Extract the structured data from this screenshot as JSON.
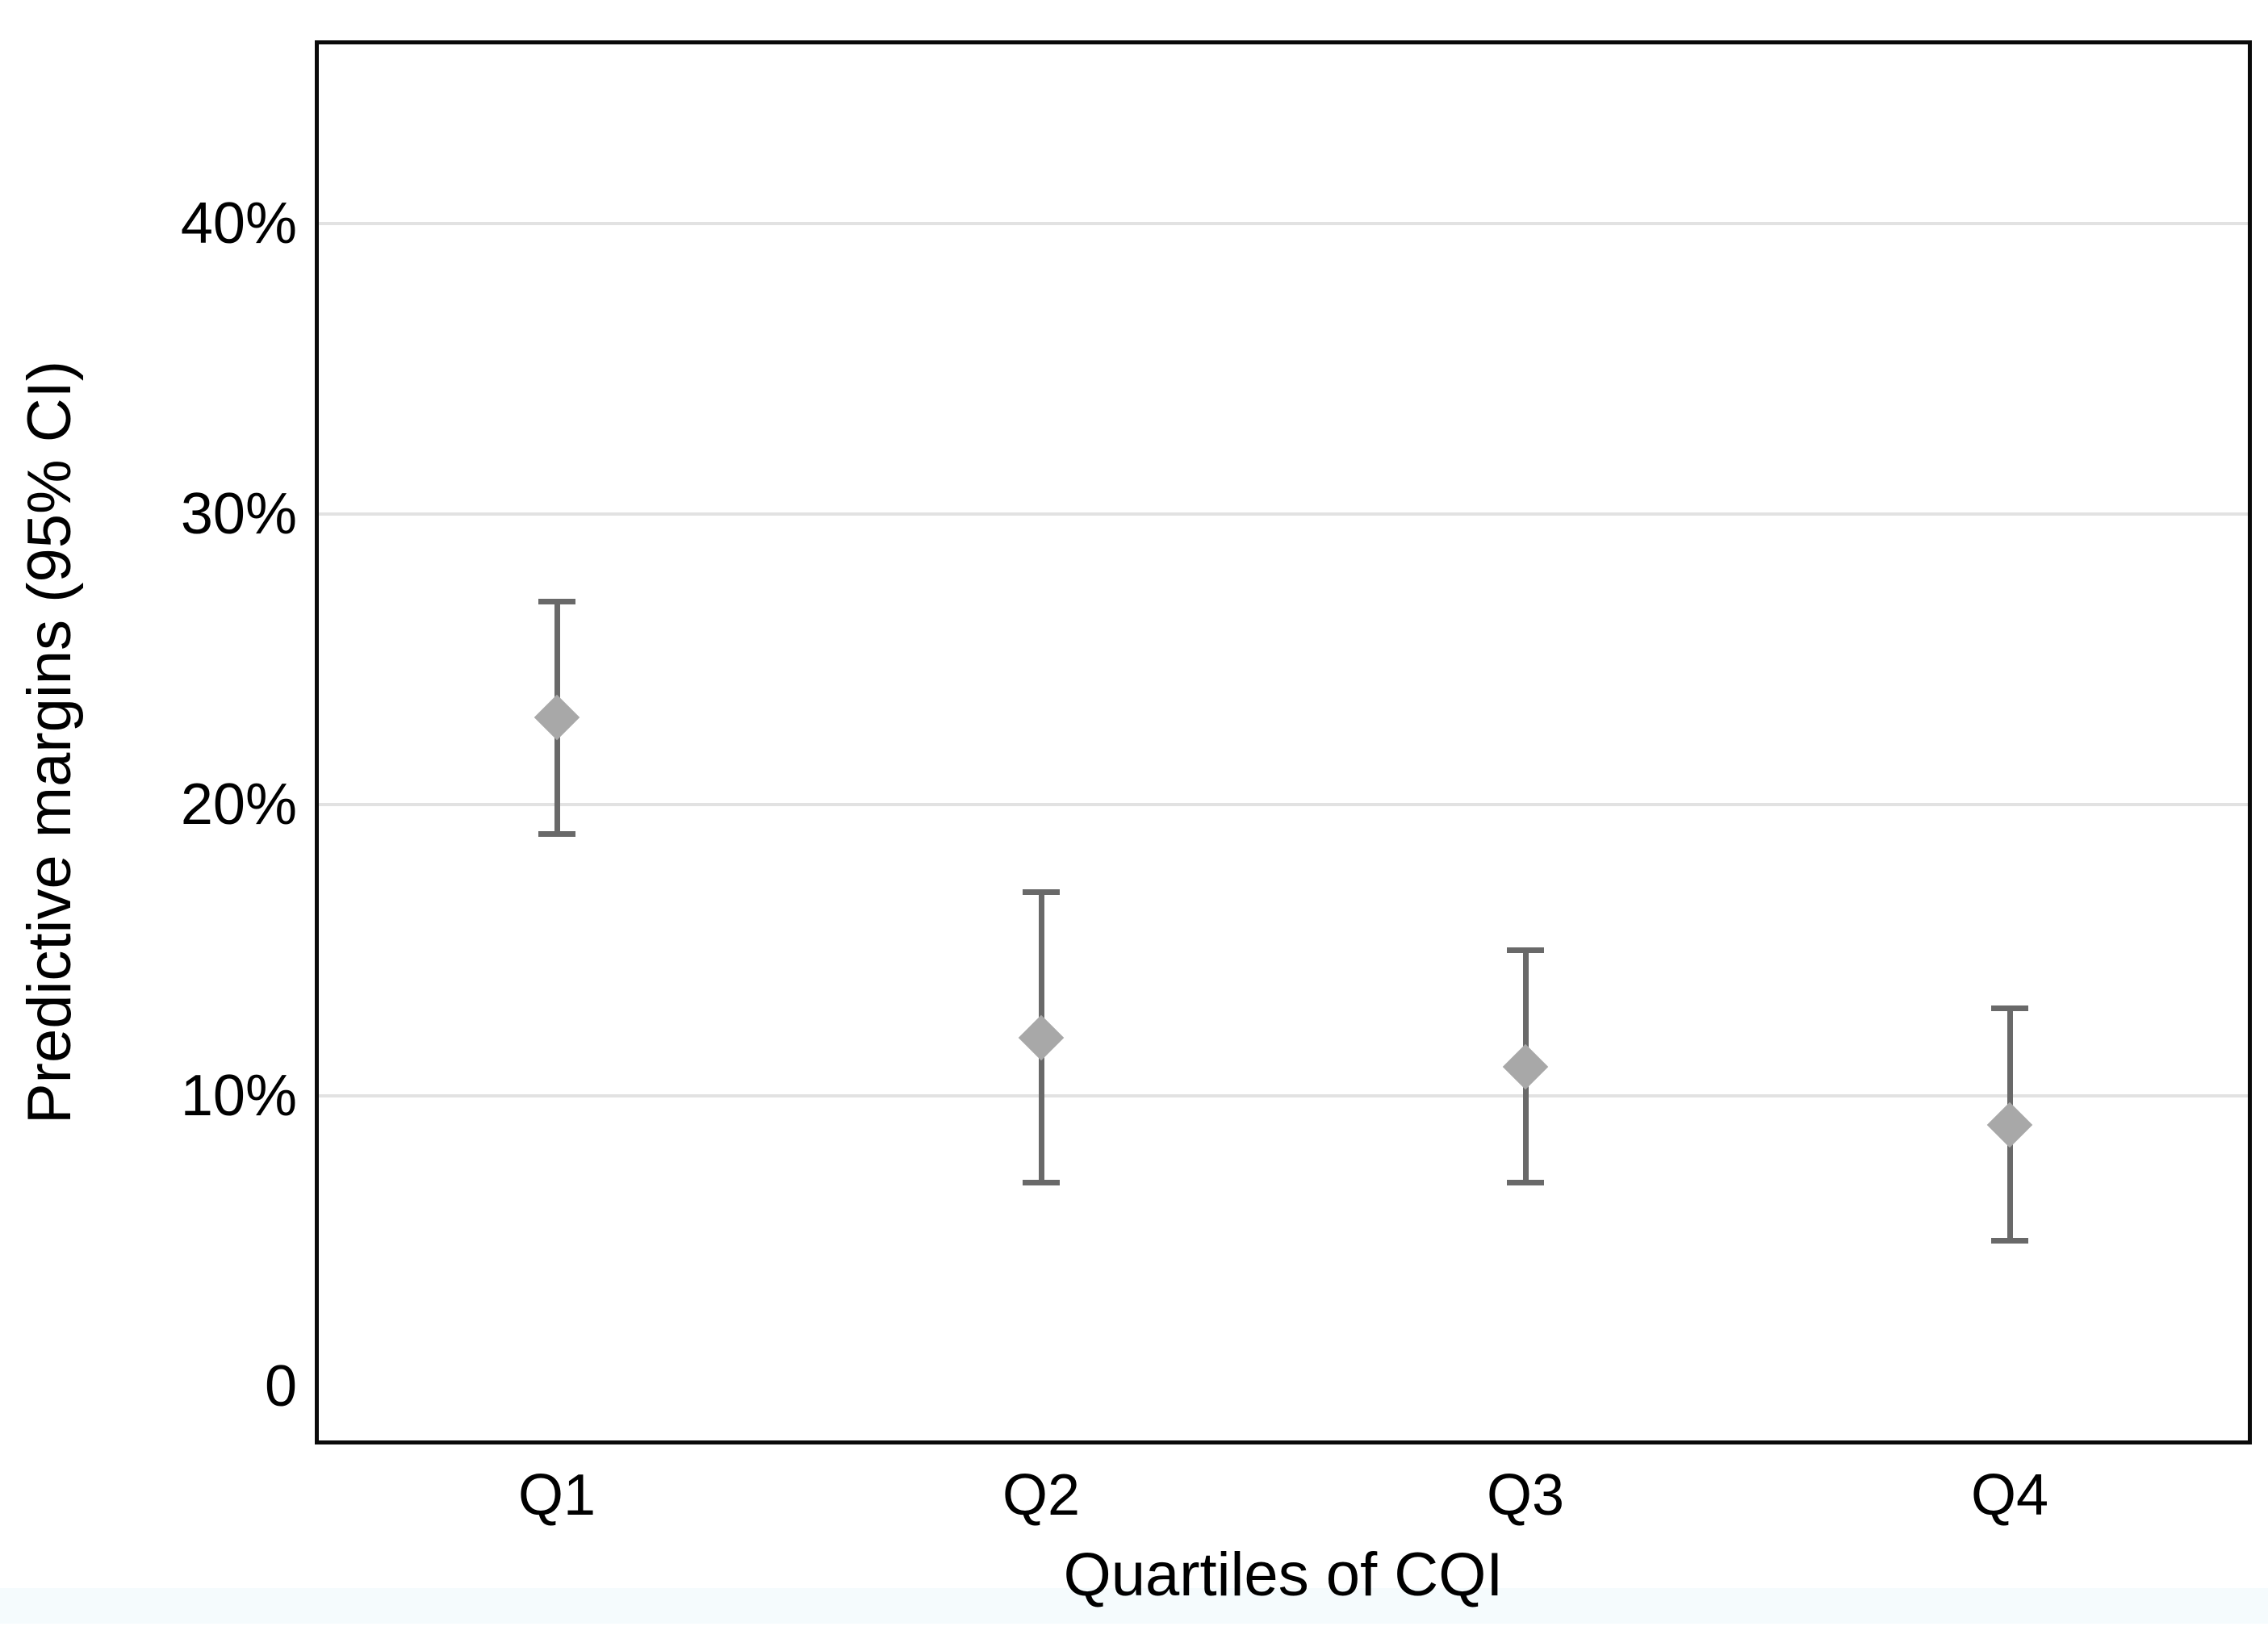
{
  "figure": {
    "background_color": "#ffffff",
    "bottom_strip_color": "#f5fbfd"
  },
  "chart_data": {
    "type": "scatter",
    "subtype": "point-estimates-with-error-bars",
    "title": "",
    "xlabel": "Quartiles of CQI",
    "ylabel": "Predictive margins (95% CI)",
    "categories": [
      "Q1",
      "Q2",
      "Q3",
      "Q4"
    ],
    "series": [
      {
        "name": "Predictive margin",
        "values": [
          23,
          12,
          11,
          9
        ],
        "ci_low": [
          19,
          7,
          7,
          5
        ],
        "ci_high": [
          27,
          17,
          15,
          13
        ]
      }
    ],
    "points": [
      {
        "category": "Q1",
        "margin_pct": 23,
        "ci_low_pct": 19,
        "ci_high_pct": 27
      },
      {
        "category": "Q2",
        "margin_pct": 12,
        "ci_low_pct": 7,
        "ci_high_pct": 17
      },
      {
        "category": "Q3",
        "margin_pct": 11,
        "ci_low_pct": 7,
        "ci_high_pct": 15
      },
      {
        "category": "Q4",
        "margin_pct": 9,
        "ci_low_pct": 5,
        "ci_high_pct": 13
      }
    ],
    "y_ticks": [
      {
        "value": 0,
        "label": "0"
      },
      {
        "value": 10,
        "label": "10%"
      },
      {
        "value": 20,
        "label": "20%"
      },
      {
        "value": 30,
        "label": "30%"
      },
      {
        "value": 40,
        "label": "40%"
      }
    ],
    "ylim": [
      -2,
      46.3
    ],
    "grid": "horizontal-only-at-nonzero-ticks",
    "legend": "none",
    "marker": "diamond",
    "colors": {
      "marker": "#a8a8a8",
      "error_bar": "#696969",
      "gridline": "#e2e2e2",
      "axis_frame": "#0a0a0a",
      "text": "#000000"
    }
  }
}
